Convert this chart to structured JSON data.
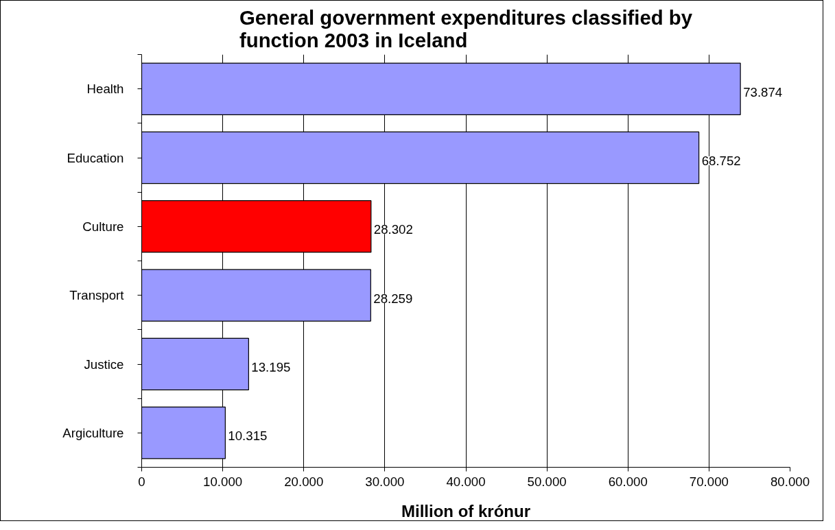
{
  "chart_data": {
    "type": "bar",
    "orientation": "horizontal",
    "title": "General government expenditures classified by function 2003 in Iceland",
    "xlabel": "Million of krónur",
    "categories": [
      "Health",
      "Education",
      "Culture",
      "Transport",
      "Justice",
      "Argiculture"
    ],
    "values": [
      73874,
      68752,
      28302,
      28259,
      13195,
      10315
    ],
    "value_labels": [
      "73.874",
      "68.752",
      "28.302",
      "28.259",
      "13.195",
      "10.315"
    ],
    "colors": [
      "#9999ff",
      "#9999ff",
      "#ff0000",
      "#9999ff",
      "#9999ff",
      "#9999ff"
    ],
    "xlim": [
      0,
      80000
    ],
    "xticks": [
      0,
      {
        "value": 10000,
        "label": "10.000"
      },
      {
        "value": 20000,
        "label": "20.000"
      },
      {
        "value": 30000,
        "label": "30.000"
      },
      {
        "value": 40000,
        "label": "40.000"
      },
      {
        "value": 50000,
        "label": "50.000"
      },
      {
        "value": 60000,
        "label": "60.000"
      },
      {
        "value": 70000,
        "label": "70.000"
      },
      {
        "value": 80000,
        "label": "80.000"
      }
    ],
    "grid": "x"
  }
}
